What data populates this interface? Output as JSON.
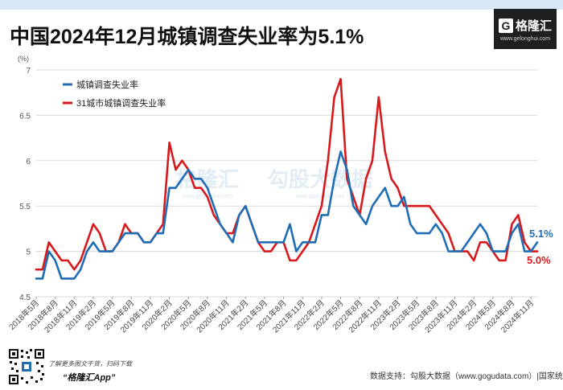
{
  "header": {
    "title": "中国2024年12月城镇调查失业率为5.1%",
    "logo_mark": "G",
    "logo_name": "格隆汇",
    "logo_url": "www.gelonghui.com"
  },
  "footer": {
    "qr_caption": "了解更多图文干货，扫码下载",
    "app_name": "“格隆汇App”",
    "source": "数据支持：勾股大数据（www.gogudata.com）|国家统计局"
  },
  "colors": {
    "urban": "#1f6db5",
    "city31": "#d7191c",
    "grid": "#d9d9d9"
  },
  "chart_data": {
    "type": "line",
    "title": "中国2024年12月城镇调查失业率为5.1%",
    "unit_label": "(%)",
    "ylim": [
      4.5,
      7
    ],
    "yticks": [
      4.5,
      5,
      5.5,
      6,
      6.5,
      7
    ],
    "ytick_labels": [
      "4.5",
      "5",
      "5.5",
      "6",
      "6.5",
      "7"
    ],
    "x": [
      "2018年5月",
      "2018年6月",
      "2018年7月",
      "2018年8月",
      "2018年9月",
      "2018年10月",
      "2018年11月",
      "2018年12月",
      "2019年1月",
      "2019年2月",
      "2019年3月",
      "2019年4月",
      "2019年5月",
      "2019年6月",
      "2019年7月",
      "2019年8月",
      "2019年9月",
      "2019年10月",
      "2019年11月",
      "2019年12月",
      "2020年1月",
      "2020年2月",
      "2020年3月",
      "2020年4月",
      "2020年5月",
      "2020年6月",
      "2020年7月",
      "2020年8月",
      "2020年9月",
      "2020年10月",
      "2020年11月",
      "2020年12月",
      "2021年1月",
      "2021年2月",
      "2021年3月",
      "2021年4月",
      "2021年5月",
      "2021年6月",
      "2021年7月",
      "2021年8月",
      "2021年9月",
      "2021年10月",
      "2021年11月",
      "2021年12月",
      "2022年1月",
      "2022年2月",
      "2022年3月",
      "2022年4月",
      "2022年5月",
      "2022年6月",
      "2022年7月",
      "2022年8月",
      "2022年9月",
      "2022年10月",
      "2022年11月",
      "2022年12月",
      "2023年1月",
      "2023年2月",
      "2023年3月",
      "2023年4月",
      "2023年5月",
      "2023年6月",
      "2023年7月",
      "2023年8月",
      "2023年9月",
      "2023年10月",
      "2023年11月",
      "2023年12月",
      "2024年1月",
      "2024年2月",
      "2024年3月",
      "2024年4月",
      "2024年5月",
      "2024年6月",
      "2024年7月",
      "2024年8月",
      "2024年9月",
      "2024年10月",
      "2024年11月",
      "2024年12月"
    ],
    "xtick_labels": [
      "2018年5月",
      "2018年8月",
      "2018年11月",
      "2019年2月",
      "2019年5月",
      "2019年8月",
      "2019年11月",
      "2020年2月",
      "2020年5月",
      "2020年8月",
      "2020年11月",
      "2021年2月",
      "2021年5月",
      "2021年8月",
      "2021年11月",
      "2022年2月",
      "2022年5月",
      "2022年8月",
      "2022年11月",
      "2023年2月",
      "2023年5月",
      "2023年8月",
      "2023年11月",
      "2024年2月",
      "2024年5月",
      "2024年8月",
      "2024年11月"
    ],
    "series": [
      {
        "name": "城镇调查失业率",
        "color": "#1f6db5",
        "values": [
          4.7,
          4.7,
          5.0,
          4.9,
          4.7,
          4.7,
          4.7,
          4.8,
          5.0,
          5.1,
          5.0,
          5.0,
          5.0,
          5.1,
          5.2,
          5.2,
          5.2,
          5.1,
          5.1,
          5.2,
          5.2,
          5.7,
          5.7,
          5.8,
          5.9,
          5.8,
          5.8,
          5.7,
          5.5,
          5.3,
          5.2,
          5.1,
          5.4,
          5.5,
          5.3,
          5.1,
          5.1,
          5.1,
          5.1,
          5.1,
          5.3,
          5.0,
          5.1,
          5.1,
          5.1,
          5.4,
          5.4,
          5.8,
          6.1,
          5.9,
          5.5,
          5.4,
          5.3,
          5.5,
          5.6,
          5.7,
          5.5,
          5.5,
          5.6,
          5.3,
          5.2,
          5.2,
          5.2,
          5.3,
          5.2,
          5.0,
          5.0,
          5.0,
          5.1,
          5.2,
          5.3,
          5.2,
          5.0,
          5.0,
          5.0,
          5.2,
          5.3,
          5.0,
          5.0,
          5.1
        ],
        "end_label": "5.1%"
      },
      {
        "name": "31城市城镇调查失业率",
        "color": "#d7191c",
        "values": [
          4.8,
          4.8,
          5.1,
          5.0,
          4.9,
          4.9,
          4.8,
          4.9,
          5.1,
          5.3,
          5.2,
          5.0,
          5.0,
          5.1,
          5.3,
          5.2,
          5.2,
          5.1,
          5.1,
          5.2,
          5.3,
          6.2,
          5.9,
          6.0,
          5.9,
          5.7,
          5.7,
          5.6,
          5.4,
          5.3,
          5.2,
          5.2,
          5.4,
          5.5,
          5.3,
          5.1,
          5.0,
          5.0,
          5.1,
          5.1,
          4.9,
          4.9,
          5.0,
          5.1,
          5.3,
          5.5,
          6.0,
          6.7,
          6.9,
          5.8,
          5.6,
          5.4,
          5.8,
          6.0,
          6.7,
          6.1,
          5.8,
          5.7,
          5.5,
          5.5,
          5.5,
          5.5,
          5.5,
          5.4,
          5.3,
          5.2,
          5.0,
          5.0,
          5.0,
          4.9,
          5.1,
          5.1,
          5.0,
          4.9,
          4.9,
          5.3,
          5.4,
          5.1,
          5.0,
          5.0
        ],
        "end_label": "5.0%"
      }
    ],
    "legend": [
      "城镇调查失业率",
      "31城市城镇调查失业率"
    ],
    "legend_position": "top-left",
    "watermark_brand": "格隆汇",
    "watermark_brand_url": "www.gelonghui.com",
    "watermark_data": "勾股大数据",
    "watermark_data_url": "www.gogudata.com",
    "grid": "horizontal"
  }
}
